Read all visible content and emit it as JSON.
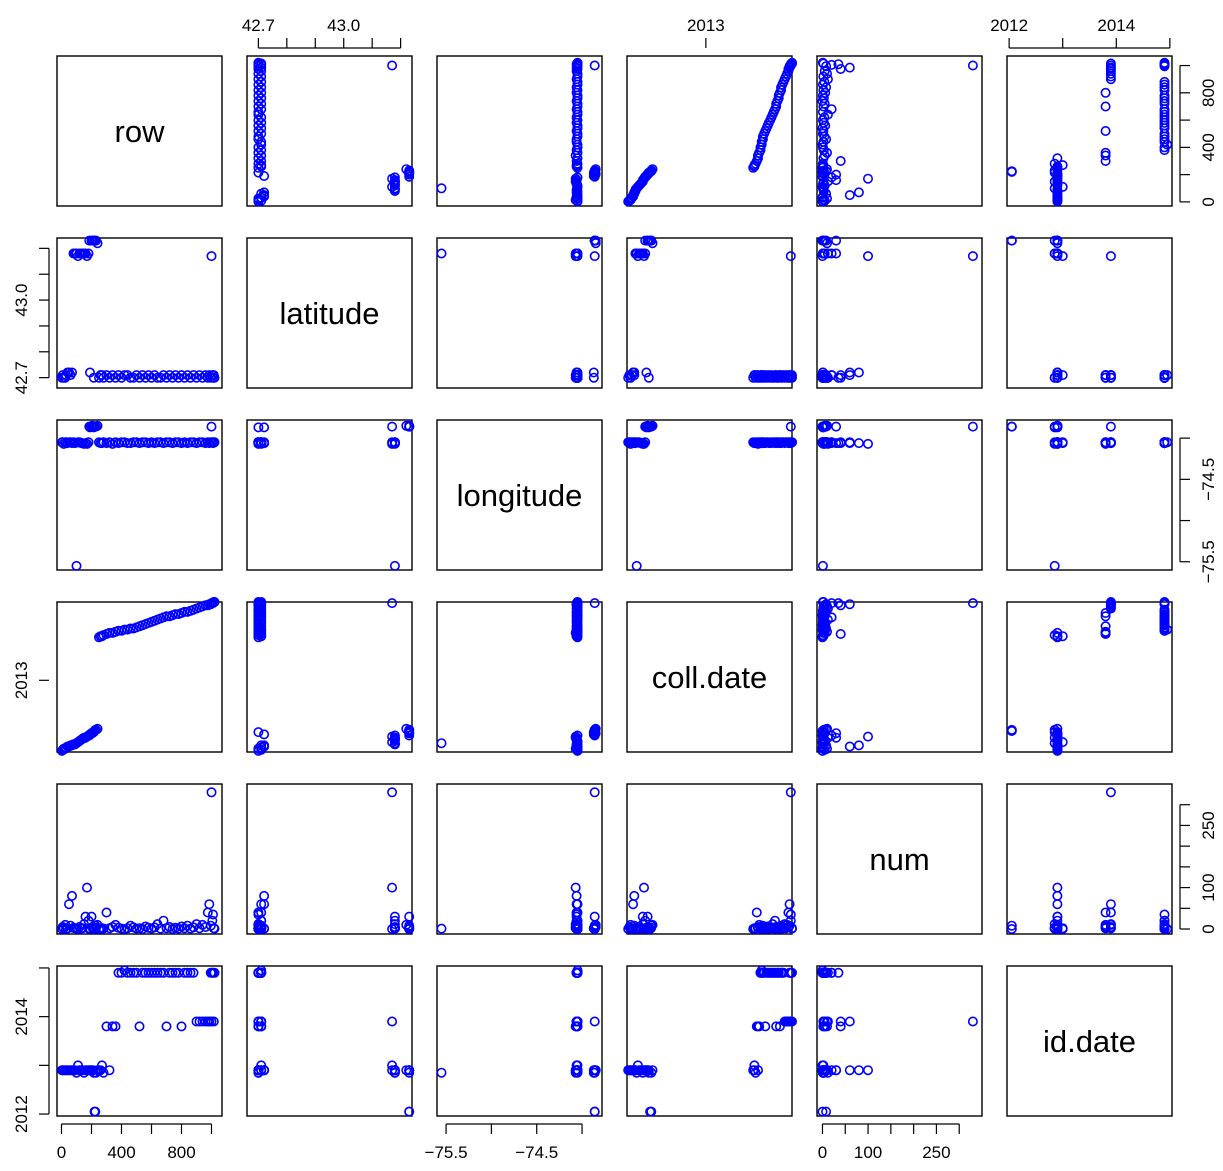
{
  "chart_data": {
    "type": "scatter",
    "kind": "scatterplot-matrix",
    "title": "",
    "point_color": "#0000ff",
    "point_style": "open-circle",
    "variables": [
      {
        "name": "row",
        "range": [
          -30,
          1070
        ],
        "ticks": [
          0,
          200,
          400,
          600,
          800,
          1000
        ],
        "tick_labels": [
          "0",
          "",
          "400",
          "",
          "800",
          ""
        ],
        "tick_side": "top-right",
        "top_bottom_axis": "bottom",
        "left_right_axis": "right"
      },
      {
        "name": "latitude",
        "range": [
          42.66,
          43.24
        ],
        "ticks": [
          42.7,
          42.8,
          42.9,
          43.0,
          43.1,
          43.2
        ],
        "tick_labels": [
          "42.7",
          "",
          "",
          "43.0",
          "",
          ""
        ],
        "top_bottom_axis": "top",
        "left_right_axis": "left"
      },
      {
        "name": "longitude",
        "range": [
          -75.6,
          -73.78
        ],
        "ticks": [
          -75.5,
          -75.0,
          -74.5,
          -74.0
        ],
        "tick_labels": [
          "−75.5",
          "",
          "−74.5",
          ""
        ],
        "top_bottom_axis": "bottom",
        "left_right_axis": "right"
      },
      {
        "name": "coll.date",
        "range": [
          2012.35,
          2013.71
        ],
        "ticks": [
          2013
        ],
        "tick_labels": [
          "2013"
        ],
        "top_bottom_axis": "top",
        "left_right_axis": "left"
      },
      {
        "name": "num",
        "range": [
          -12,
          350
        ],
        "ticks": [
          0,
          50,
          100,
          150,
          200,
          250,
          300
        ],
        "tick_labels": [
          "0",
          "",
          "100",
          "",
          "",
          "250",
          ""
        ],
        "top_bottom_axis": "bottom",
        "left_right_axis": "right"
      },
      {
        "name": "id.date",
        "range": [
          2011.96,
          2015.04
        ],
        "ticks": [
          2012,
          2013,
          2014,
          2015
        ],
        "tick_labels": [
          "2012",
          "",
          "2014",
          ""
        ],
        "top_bottom_axis": "top",
        "left_right_axis": "left"
      }
    ],
    "observations": [
      [
        3,
        42.7,
        -74.05,
        2012.36,
        0,
        2012.9
      ],
      [
        8,
        42.71,
        -74.05,
        2012.37,
        5,
        2012.9
      ],
      [
        15,
        42.7,
        -74.07,
        2012.38,
        2,
        2012.9
      ],
      [
        25,
        42.7,
        -74.05,
        2012.38,
        10,
        2012.9
      ],
      [
        30,
        42.71,
        -74.05,
        2012.39,
        0,
        2012.9
      ],
      [
        40,
        42.72,
        -74.06,
        2012.4,
        1,
        2012.9
      ],
      [
        50,
        42.72,
        -74.05,
        2012.4,
        60,
        2012.9
      ],
      [
        60,
        42.71,
        -74.05,
        2012.41,
        8,
        2012.9
      ],
      [
        70,
        42.72,
        -74.06,
        2012.41,
        80,
        2012.9
      ],
      [
        80,
        43.18,
        -74.05,
        2012.42,
        3,
        2012.9
      ],
      [
        90,
        43.18,
        -74.06,
        2012.42,
        2,
        2012.9
      ],
      [
        100,
        43.18,
        -75.55,
        2012.43,
        1,
        2012.85
      ],
      [
        110,
        43.17,
        -74.05,
        2012.44,
        0,
        2013.0
      ],
      [
        120,
        43.18,
        -74.05,
        2012.45,
        5,
        2012.9
      ],
      [
        130,
        43.18,
        -74.06,
        2012.46,
        1,
        2012.9
      ],
      [
        140,
        43.18,
        -74.06,
        2012.47,
        2,
        2012.9
      ],
      [
        150,
        43.18,
        -74.07,
        2012.48,
        12,
        2012.85
      ],
      [
        160,
        43.18,
        -74.06,
        2012.48,
        30,
        2012.9
      ],
      [
        170,
        43.17,
        -74.07,
        2012.49,
        100,
        2012.9
      ],
      [
        180,
        43.18,
        -74.05,
        2012.5,
        20,
        2012.9
      ],
      [
        185,
        43.23,
        -73.86,
        2012.5,
        0,
        2012.9
      ],
      [
        190,
        42.72,
        -73.87,
        2012.51,
        1,
        2012.9
      ],
      [
        200,
        43.23,
        -73.86,
        2012.52,
        30,
        2012.9
      ],
      [
        205,
        43.23,
        -73.85,
        2012.52,
        5,
        2012.9
      ],
      [
        210,
        43.23,
        -73.86,
        2012.53,
        1,
        2012.9
      ],
      [
        215,
        42.7,
        -73.87,
        2012.53,
        2,
        2012.85
      ],
      [
        220,
        43.23,
        -73.86,
        2012.54,
        0,
        2012.05
      ],
      [
        225,
        43.23,
        -73.86,
        2012.55,
        8,
        2012.05
      ],
      [
        230,
        43.23,
        -73.86,
        2012.55,
        3,
        2012.85
      ],
      [
        240,
        43.22,
        -73.85,
        2012.56,
        10,
        2012.9
      ],
      [
        250,
        42.7,
        -74.05,
        2013.39,
        0,
        2012.9
      ],
      [
        260,
        42.71,
        -74.06,
        2013.4,
        1,
        2012.9
      ],
      [
        270,
        42.71,
        -74.06,
        2013.4,
        2,
        2013.0
      ],
      [
        280,
        42.7,
        -74.05,
        2013.41,
        1,
        2012.85
      ],
      [
        300,
        42.71,
        -74.06,
        2013.42,
        40,
        2013.8
      ],
      [
        320,
        42.7,
        -74.05,
        2013.43,
        2,
        2012.9
      ],
      [
        340,
        42.71,
        -74.07,
        2013.43,
        5,
        2013.8
      ],
      [
        360,
        42.7,
        -74.05,
        2013.44,
        10,
        2013.8
      ],
      [
        380,
        42.71,
        -74.06,
        2013.45,
        3,
        2014.9
      ],
      [
        400,
        42.7,
        -74.05,
        2013.45,
        1,
        2014.9
      ],
      [
        420,
        42.71,
        -74.05,
        2013.46,
        0,
        2014.95
      ],
      [
        440,
        42.71,
        -74.06,
        2013.46,
        2,
        2014.9
      ],
      [
        460,
        42.7,
        -74.06,
        2013.47,
        8,
        2014.9
      ],
      [
        480,
        42.7,
        -74.05,
        2013.47,
        4,
        2014.9
      ],
      [
        500,
        42.71,
        -74.05,
        2013.48,
        1,
        2014.9
      ],
      [
        520,
        42.7,
        -74.06,
        2013.49,
        2,
        2013.8
      ],
      [
        540,
        42.71,
        -74.05,
        2013.5,
        0,
        2014.9
      ],
      [
        560,
        42.7,
        -74.05,
        2013.51,
        6,
        2014.9
      ],
      [
        580,
        42.71,
        -74.06,
        2013.52,
        3,
        2014.9
      ],
      [
        600,
        42.7,
        -74.05,
        2013.53,
        1,
        2014.9
      ],
      [
        620,
        42.71,
        -74.06,
        2013.54,
        4,
        2014.9
      ],
      [
        640,
        42.7,
        -74.05,
        2013.55,
        12,
        2014.9
      ],
      [
        660,
        42.7,
        -74.05,
        2013.56,
        1,
        2014.9
      ],
      [
        680,
        42.71,
        -74.06,
        2013.57,
        20,
        2014.9
      ],
      [
        700,
        42.7,
        -74.05,
        2013.58,
        2,
        2013.8
      ],
      [
        720,
        42.71,
        -74.05,
        2013.58,
        5,
        2014.9
      ],
      [
        740,
        42.7,
        -74.06,
        2013.59,
        0,
        2014.9
      ],
      [
        760,
        42.71,
        -74.05,
        2013.6,
        3,
        2014.9
      ],
      [
        780,
        42.7,
        -74.05,
        2013.6,
        1,
        2014.9
      ],
      [
        800,
        42.71,
        -74.06,
        2013.61,
        6,
        2013.8
      ],
      [
        820,
        42.7,
        -74.05,
        2013.62,
        2,
        2014.9
      ],
      [
        840,
        42.71,
        -74.06,
        2013.62,
        8,
        2014.9
      ],
      [
        860,
        42.7,
        -74.05,
        2013.63,
        1,
        2014.9
      ],
      [
        880,
        42.71,
        -74.05,
        2013.64,
        4,
        2014.9
      ],
      [
        900,
        42.7,
        -74.06,
        2013.65,
        12,
        2013.9
      ],
      [
        920,
        42.71,
        -74.05,
        2013.66,
        2,
        2013.9
      ],
      [
        940,
        42.7,
        -74.05,
        2013.67,
        10,
        2013.9
      ],
      [
        960,
        42.71,
        -74.06,
        2013.68,
        5,
        2013.9
      ],
      [
        975,
        42.7,
        -74.05,
        2013.68,
        40,
        2013.9
      ],
      [
        985,
        42.71,
        -74.06,
        2013.69,
        60,
        2013.9
      ],
      [
        995,
        42.7,
        -74.05,
        2013.69,
        8,
        2014.9
      ],
      [
        1000,
        43.17,
        -73.86,
        2013.7,
        330,
        2013.9
      ],
      [
        1005,
        42.71,
        -74.05,
        2013.7,
        20,
        2014.9
      ],
      [
        1010,
        42.7,
        -74.06,
        2013.7,
        35,
        2014.9
      ],
      [
        1015,
        42.71,
        -74.05,
        2013.71,
        2,
        2013.9
      ],
      [
        1020,
        42.7,
        -74.05,
        2013.71,
        1,
        2014.9
      ]
    ]
  }
}
